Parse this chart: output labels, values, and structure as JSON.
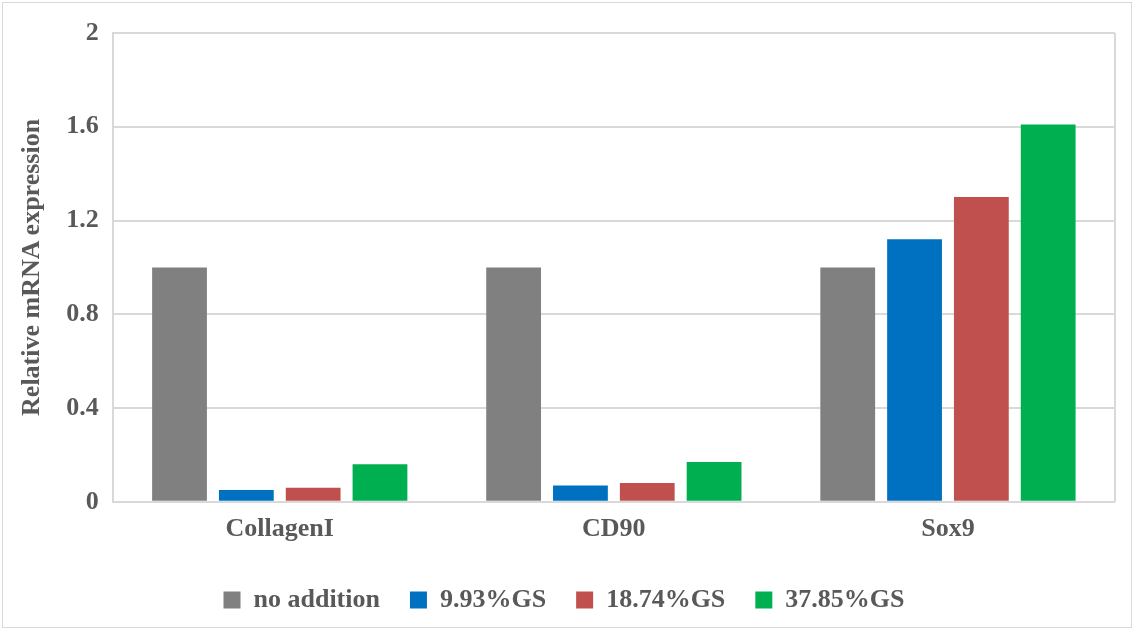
{
  "chart_data": {
    "type": "bar",
    "ylabel": "Relative mRNA expression",
    "categories": [
      "CollagenI",
      "CD90",
      "Sox9"
    ],
    "series": [
      {
        "name": "no addition",
        "color": "#808080",
        "values": [
          1,
          1,
          1
        ]
      },
      {
        "name": "9.93%GS",
        "color": "#0070c0",
        "values": [
          0.05,
          0.07,
          1.12
        ]
      },
      {
        "name": "18.74%GS",
        "color": "#c0504d",
        "values": [
          0.06,
          0.08,
          1.3
        ]
      },
      {
        "name": "37.85%GS",
        "color": "#00b050",
        "values": [
          0.16,
          0.17,
          1.61
        ]
      }
    ],
    "ylim": [
      0,
      2
    ],
    "yticks": [
      0,
      0.4,
      0.8,
      1.2,
      1.6,
      2
    ],
    "grid": "y",
    "legend": "bottom"
  }
}
